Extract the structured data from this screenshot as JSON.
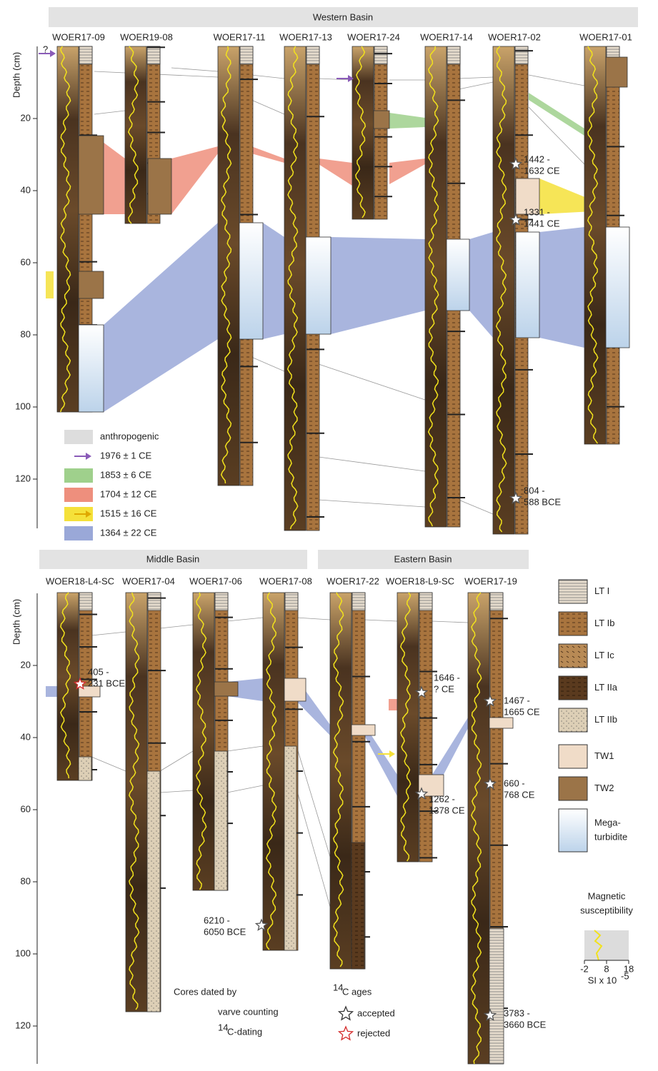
{
  "top_panel": {
    "title": "Western Basin",
    "axis_label": "Depth (cm)",
    "question_mark": "?",
    "ticks": [
      20,
      40,
      60,
      80,
      100,
      120
    ],
    "cores": [
      {
        "name": "WOER17-09",
        "color": "#222222"
      },
      {
        "name": "WOER19-08",
        "color": "#d42a2a"
      },
      {
        "name": "WOER17-11",
        "color": "#222222"
      },
      {
        "name": "WOER17-13",
        "color": "#222222"
      },
      {
        "name": "WOER17-24",
        "color": "#d42a2a"
      },
      {
        "name": "WOER17-14",
        "color": "#d42a2a"
      },
      {
        "name": "WOER17-02",
        "color": "#2a9a4a"
      },
      {
        "name": "WOER17-01",
        "color": "#d42a2a"
      }
    ],
    "dates": [
      [
        "1442 -",
        "1632 CE"
      ],
      [
        "1331 -",
        "1441 CE"
      ],
      [
        "804 -",
        "588 BCE"
      ]
    ],
    "legend": [
      {
        "label": "anthropogenic",
        "color": "#dddddd"
      },
      {
        "label": "1976 ± 1 CE",
        "color": "#8a5bb8"
      },
      {
        "label": "1853 ± 6 CE",
        "color": "#9fd08c"
      },
      {
        "label": "1704 ± 12 CE",
        "color": "#ee8f7d"
      },
      {
        "label": "1515 ± 16 CE",
        "color": "#f5e13a"
      },
      {
        "label": "1364 ± 22 CE",
        "color": "#9aa8d8"
      }
    ]
  },
  "bottom_panel": {
    "titles": [
      "Middle Basin",
      "Eastern Basin"
    ],
    "axis_label": "Depth (cm)",
    "ticks": [
      20,
      40,
      60,
      80,
      100,
      120
    ],
    "cores": [
      {
        "name": "WOER18-L4-SC",
        "color": "#2a9a4a"
      },
      {
        "name": "WOER17-04",
        "color": "#222222"
      },
      {
        "name": "WOER17-06",
        "color": "#222222"
      },
      {
        "name": "WOER17-08",
        "color": "#2a9a4a"
      },
      {
        "name": "WOER17-22",
        "color": "#222222"
      },
      {
        "name": "WOER18-L9-SC",
        "color": "#d42a2a"
      },
      {
        "name": "WOER17-19",
        "color": "#2a9a4a"
      }
    ],
    "dates": [
      [
        "405 -",
        "231 BCE"
      ],
      [
        "1646 -",
        "? CE"
      ],
      [
        "1262 -",
        "1378 CE"
      ],
      [
        "1467 -",
        "1665 CE"
      ],
      [
        "660 -",
        "768 CE"
      ],
      [
        "6210 -",
        "6050 BCE"
      ],
      [
        "3783 -",
        "3660 BCE"
      ]
    ]
  },
  "lithotype_legend": [
    {
      "label": [
        "LT I"
      ]
    },
    {
      "label": [
        "LT Ib"
      ]
    },
    {
      "label": [
        "LT Ic"
      ]
    },
    {
      "label": [
        "LT IIa"
      ]
    },
    {
      "label": [
        "LT IIb"
      ]
    },
    {
      "label": [
        "TW1"
      ]
    },
    {
      "label": [
        "TW2"
      ]
    },
    {
      "label": [
        "Mega-",
        "turbidite"
      ]
    }
  ],
  "ms_legend": {
    "title": [
      "Magnetic",
      "susceptibility"
    ],
    "ticks": [
      -2,
      8,
      18
    ],
    "unit": "SI x 10",
    "unit_exp": "-5"
  },
  "dating_legend": {
    "title": "Cores dated by",
    "varve": "varve counting",
    "c14_sup": "14",
    "c14": "C-dating"
  },
  "ages_legend": {
    "sup": "14",
    "title": "C ages",
    "accepted": "accepted",
    "rejected": "rejected"
  }
}
